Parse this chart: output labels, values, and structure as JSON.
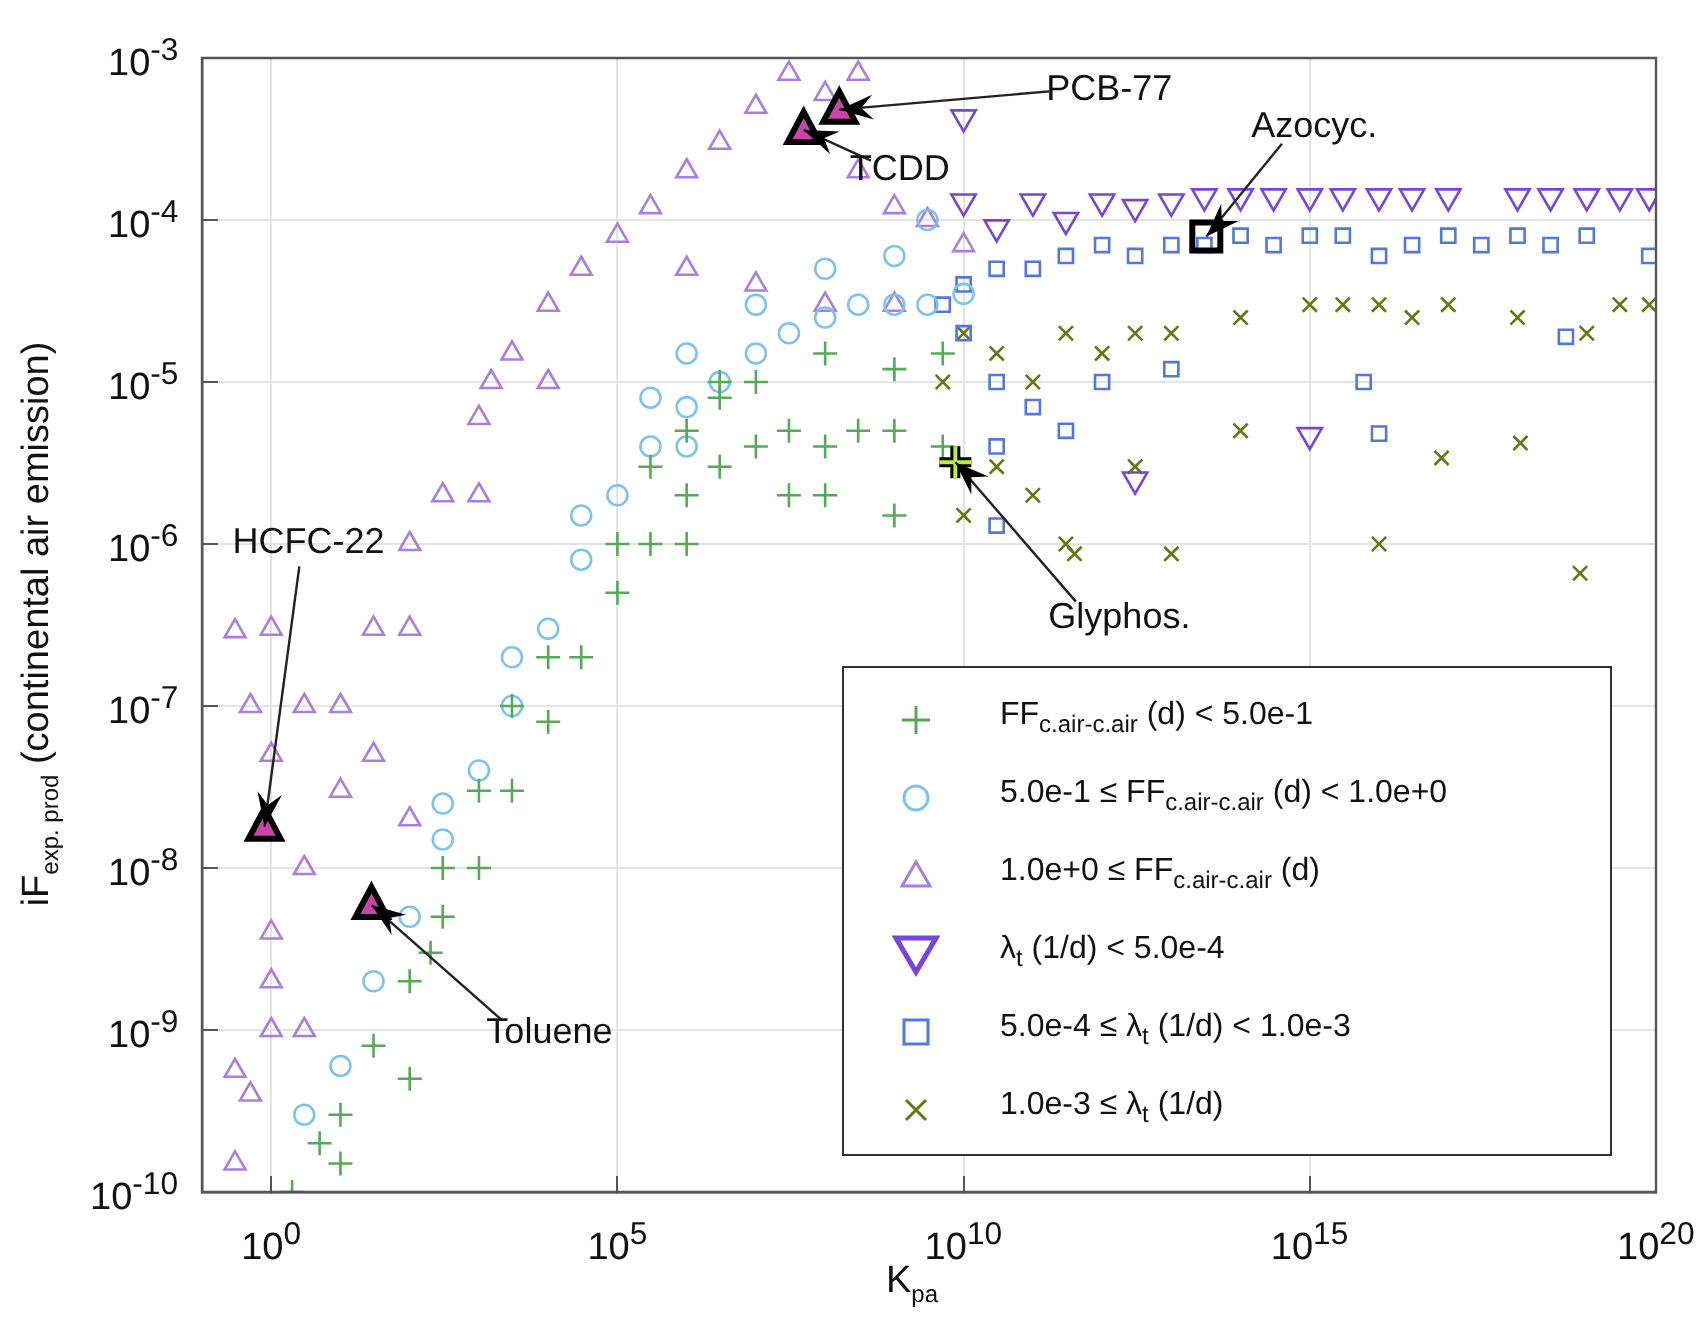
{
  "chart_data": {
    "type": "scatter",
    "xlabel": "K$_{pa}$",
    "ylabel": "iF$_{exp. prod}$ (continental air emission)",
    "log": "xy",
    "grid": true,
    "legend": "bottom right",
    "xlim": [
      0.1,
      1e+20
    ],
    "xticks": [
      {
        "value": 1,
        "label": "10$^{0}$"
      },
      {
        "value": 100000,
        "label": "10$^{5}$"
      },
      {
        "value": 10000000000.0,
        "label": "10$^{10}$"
      },
      {
        "value": 1000000000000000.0,
        "label": "10$^{15}$"
      },
      {
        "value": 1e+20,
        "label": "10$^{20}$"
      }
    ],
    "ylim": [
      1e-10,
      0.001
    ],
    "yticks": [
      {
        "value": 1e-10,
        "label": "10$^{-10}$"
      },
      {
        "value": 1e-09,
        "label": "10$^{-9}$"
      },
      {
        "value": 1e-08,
        "label": "10$^{-8}$"
      },
      {
        "value": 1e-07,
        "label": "10$^{-7}$"
      },
      {
        "value": 1e-06,
        "label": "10$^{-6}$"
      },
      {
        "value": 1e-05,
        "label": "10$^{-5}$"
      },
      {
        "value": 0.0001,
        "label": "10$^{-4}$"
      },
      {
        "value": 0.001,
        "label": "10$^{-3}$"
      }
    ],
    "series": [
      {
        "name": "FF$_{c.air-c.air}$ (d) < 5.0e-1",
        "color": "#55aa55",
        "marker": "cross",
        "x": [
          2,
          5,
          10,
          30,
          10,
          100,
          300,
          200,
          1000,
          3000,
          10000,
          30000,
          100000,
          300000,
          1000000,
          3000000,
          10000000,
          30000000,
          100000000,
          300000000,
          1000000000,
          5000000000,
          1000000,
          3000000,
          10000000,
          100000000,
          1000000000,
          300000,
          10000,
          3000,
          1000,
          300,
          1000000,
          30000000,
          100000000,
          1000000000,
          100000,
          3000000,
          5000000000,
          100
        ],
        "values": [
          1e-10,
          2e-10,
          3e-10,
          8e-10,
          1.5e-10,
          2e-09,
          5e-09,
          3e-09,
          1e-08,
          3e-08,
          8e-08,
          2e-07,
          1e-06,
          1e-06,
          2e-06,
          3e-06,
          4e-06,
          5e-06,
          4e-06,
          5e-06,
          5e-06,
          4e-06,
          5e-06,
          8e-06,
          1e-05,
          1.5e-05,
          1.2e-05,
          3e-06,
          2e-07,
          1e-07,
          3e-08,
          1e-08,
          1e-06,
          2e-06,
          2e-06,
          1.5e-06,
          5e-07,
          1e-05,
          1.5e-05,
          5e-10
        ]
      },
      {
        "name": "5.0e-1 ≤ FF$_{c.air-c.air}$ (d) < 1.0e+0",
        "color": "#7cc4ee",
        "marker": "circle",
        "x": [
          3,
          10,
          30,
          100,
          300,
          1000,
          3000,
          10000,
          30000,
          100000,
          300000,
          1000000,
          3000000,
          10000000,
          30000000,
          100000000,
          300000000,
          1000000000,
          3000000000,
          10000000000,
          3000000000,
          1000000000,
          1000000,
          10000000,
          100000000,
          300000,
          30000,
          3000,
          300,
          1000000
        ],
        "values": [
          3e-10,
          6e-10,
          2e-09,
          5e-09,
          1.5e-08,
          4e-08,
          1e-07,
          3e-07,
          8e-07,
          2e-06,
          4e-06,
          7e-06,
          1e-05,
          1.5e-05,
          2e-05,
          2.5e-05,
          3e-05,
          3e-05,
          3e-05,
          3.5e-05,
          0.0001,
          6e-05,
          1.5e-05,
          3e-05,
          5e-05,
          8e-06,
          1.5e-06,
          2e-07,
          2.5e-08,
          4e-06
        ]
      },
      {
        "name": "1.0e+0 ≤ FF$_{c.air-c.air}$ (d)",
        "color": "#aa7ee0",
        "marker": "triangle",
        "x": [
          0.3,
          0.5,
          1,
          3,
          1,
          3,
          10,
          1,
          0.5,
          1,
          3,
          10,
          30,
          100,
          300,
          1000,
          3000,
          10000,
          30000,
          100000,
          300000,
          1000000,
          3000000,
          10000000,
          30000000,
          100000000,
          300000000,
          1000000000,
          3000000000,
          10000000000,
          1000000,
          10000000,
          100000000,
          1000000000,
          10000,
          1000,
          100,
          30,
          100,
          1,
          1500,
          0.3,
          0.3,
          300000000
        ],
        "values": [
          1.5e-10,
          4e-10,
          1e-09,
          1e-09,
          4e-09,
          1e-08,
          3e-08,
          5e-08,
          1e-07,
          3e-07,
          1e-07,
          1e-07,
          3e-07,
          1e-06,
          2e-06,
          6e-06,
          1.5e-05,
          3e-05,
          5e-05,
          8e-05,
          0.00012,
          0.0002,
          0.0003,
          0.0005,
          0.0008,
          0.0006,
          0.0002,
          0.00012,
          0.0001,
          7e-05,
          5e-05,
          4e-05,
          3e-05,
          3e-05,
          1e-05,
          2e-06,
          3e-07,
          5e-08,
          2e-08,
          2e-09,
          1e-05,
          2.9e-07,
          5.6e-10,
          0.0008
        ]
      },
      {
        "name": "λ$_{t}$ (1/d) < 5.0e-4",
        "color": "#7744dd",
        "marker": "triangle-down",
        "x": [
          10000000000,
          30000000000,
          100000000000,
          300000000000,
          1000000000000,
          3000000000000,
          10000000000000,
          30000000000000,
          100000000000000,
          300000000000000,
          1000000000000000,
          3000000000000000,
          10000000000000000,
          30000000000000000,
          100000000000000000,
          1000000000000000000,
          3000000000000000000,
          10000000000000000000,
          30000000000000000000,
          80000000000000000000,
          1000000000000000,
          3000000000000,
          10000000000
        ],
        "values": [
          0.00013,
          9e-05,
          0.00013,
          0.0001,
          0.00013,
          0.00012,
          0.00013,
          0.00014,
          0.00014,
          0.00014,
          0.00014,
          0.00014,
          0.00014,
          0.00014,
          0.00014,
          0.00014,
          0.00014,
          0.00014,
          0.00014,
          0.00014,
          4.7e-06,
          2.5e-06,
          0.00043
        ]
      },
      {
        "name": "5.0e-4 ≤ λ$_{t}$ (1/d) < 1.0e-3",
        "color": "#5577dd",
        "marker": "square",
        "x": [
          5000000000,
          10000000000,
          30000000000,
          100000000000,
          300000000000,
          1000000000000,
          3000000000000,
          10000000000000,
          30000000000000,
          100000000000000,
          300000000000000,
          1000000000000000,
          3000000000000000,
          10000000000000000,
          30000000000000000,
          100000000000000000,
          300000000000000000,
          1000000000000000000,
          3000000000000000000,
          10000000000000000000,
          80000000000000000000,
          10000000000,
          30000000000,
          100000000000,
          30000000000,
          30000000000,
          300000000000,
          6000000000000000,
          10000000000000000,
          5000000000000000000,
          1000000000000,
          10000000000000
        ],
        "values": [
          3e-05,
          4e-05,
          5e-05,
          5e-05,
          6e-05,
          7e-05,
          6e-05,
          7e-05,
          7e-05,
          8e-05,
          7e-05,
          8e-05,
          8e-05,
          6e-05,
          7e-05,
          8e-05,
          7e-05,
          8e-05,
          7e-05,
          8e-05,
          6e-05,
          2e-05,
          1e-05,
          7e-06,
          4e-06,
          1.3e-06,
          5e-06,
          1e-05,
          4.8e-06,
          1.9e-05,
          1e-05,
          1.2e-05
        ]
      },
      {
        "name": "1.0e-3 ≤ λ$_{t}$ (1/d)",
        "color": "#667711",
        "marker": "x",
        "x": [
          5000000000,
          10000000000,
          30000000000,
          100000000000,
          300000000000,
          1000000000000,
          3000000000000,
          10000000000000,
          100000000000000,
          1000000000000000,
          3000000000000000,
          10000000000000000,
          30000000000000000,
          100000000000000000,
          1000000000000000000,
          10000000000000000000,
          30000000000000000000,
          80000000000000000000,
          30000000000,
          100000000000,
          300000000000,
          10000000000000,
          10000000000,
          400000000000,
          10000000000000000,
          8000000000000000000,
          1100000000000000000,
          80000000000000000,
          3000000000000,
          100000000000000
        ],
        "values": [
          1e-05,
          2e-05,
          1.5e-05,
          1e-05,
          2e-05,
          1.5e-05,
          2e-05,
          2e-05,
          2.5e-05,
          3e-05,
          3e-05,
          3e-05,
          2.5e-05,
          3e-05,
          2.5e-05,
          2e-05,
          3e-05,
          3e-05,
          3e-06,
          2e-06,
          1e-06,
          8.7e-07,
          1.5e-06,
          8.7e-07,
          1e-06,
          6.6e-07,
          4.2e-06,
          3.4e-06,
          3e-06,
          5e-06
        ]
      }
    ],
    "annotations": [
      {
        "text": "HCFC-22",
        "x": 0.8,
        "y": 1.8e-08
      },
      {
        "text": "Toluene",
        "x": 28,
        "y": 5.9e-09
      },
      {
        "text": "TCDD",
        "x": 49000000,
        "y": 0.00036
      },
      {
        "text": "PCB-77",
        "x": 160000000,
        "y": 0.00048
      },
      {
        "text": "Azocyc.",
        "x": 32000000000000,
        "y": 7.9e-05
      },
      {
        "text": "Glyphos.",
        "x": 7600000000,
        "y": 3.2e-06
      }
    ]
  }
}
